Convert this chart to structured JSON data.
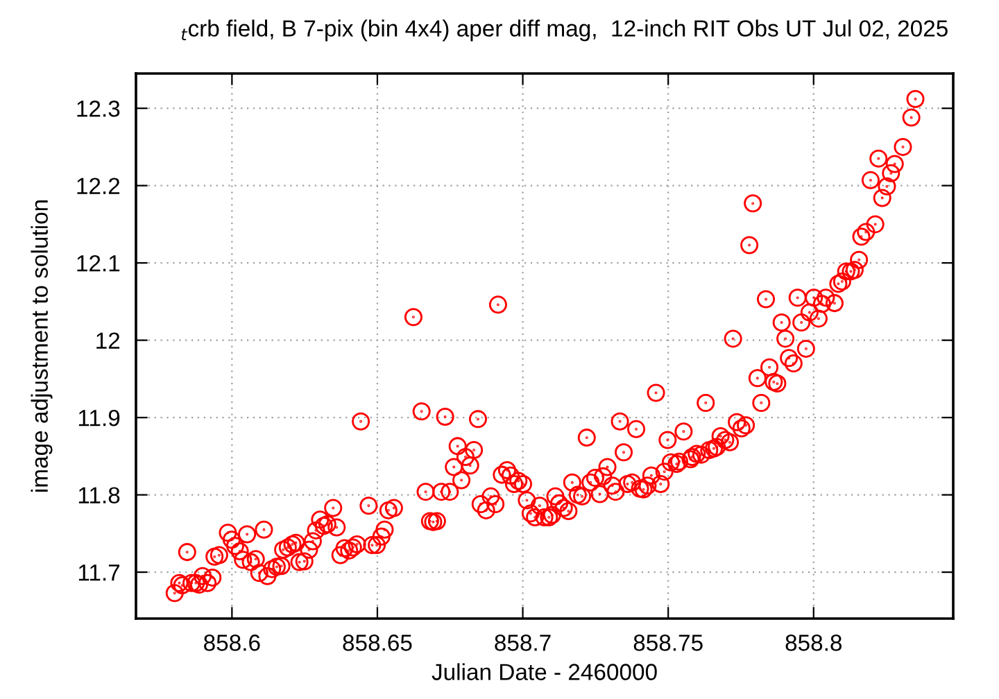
{
  "chart_data": {
    "type": "scatter",
    "title": "$_{t}$crb field, B 7-pix (bin 4x4) aper diff mag,  12-inch RIT Obs UT Jul 02, 2025",
    "xlabel": "Julian Date - 2460000",
    "ylabel": "image adjustment to solution",
    "xlim": [
      858.567,
      858.848
    ],
    "ylim": [
      11.64,
      12.345
    ],
    "xticks": [
      858.6,
      858.65,
      858.7,
      858.75,
      858.8
    ],
    "yticks": [
      11.7,
      11.8,
      11.9,
      12,
      12.1,
      12.2,
      12.3
    ],
    "grid": true,
    "marker": "circle",
    "legend": false,
    "series": [
      {
        "color": "#ff0000",
        "x": [
          858.5803,
          858.5819,
          858.5829,
          858.5846,
          858.5861,
          858.5876,
          858.5887,
          858.5899,
          858.5916,
          858.5933,
          858.594,
          858.5956,
          858.5986,
          858.5999,
          858.6011,
          858.6027,
          858.6038,
          858.6052,
          858.6065,
          858.6082,
          858.6094,
          858.611,
          858.6122,
          858.6138,
          858.6154,
          858.617,
          858.6176,
          858.6192,
          858.6208,
          858.622,
          858.6232,
          858.6249,
          858.6265,
          858.6278,
          858.6289,
          858.6303,
          858.6316,
          858.6328,
          858.6348,
          858.636,
          858.6373,
          858.6387,
          858.6403,
          858.6416,
          858.643,
          858.6443,
          858.647,
          858.6482,
          858.6498,
          858.6514,
          858.6525,
          858.6538,
          858.6557,
          858.6624,
          858.6652,
          858.6666,
          858.6681,
          858.6692,
          858.6705,
          858.672,
          858.6733,
          858.6749,
          858.6763,
          858.6776,
          858.6789,
          858.6803,
          858.6819,
          858.6832,
          858.6846,
          858.6855,
          858.6874,
          858.689,
          858.6906,
          858.6915,
          858.6928,
          858.6946,
          858.6958,
          858.697,
          858.6985,
          858.7001,
          858.7014,
          858.7027,
          858.7042,
          858.7058,
          858.7074,
          858.709,
          858.7101,
          858.7112,
          858.7125,
          858.7141,
          858.7157,
          858.717,
          858.7189,
          858.7204,
          858.722,
          858.7233,
          858.7249,
          858.7265,
          858.7276,
          858.7291,
          858.7308,
          858.7319,
          858.7334,
          858.7347,
          858.736,
          858.7376,
          858.739,
          858.7403,
          858.7415,
          858.7429,
          858.7442,
          858.7458,
          858.7474,
          858.7487,
          858.7498,
          858.7509,
          858.7529,
          858.7553,
          858.7577,
          858.7538,
          858.7582,
          858.7598,
          858.7614,
          858.7629,
          858.7641,
          858.7657,
          858.7667,
          858.768,
          858.7696,
          858.7712,
          858.7723,
          858.7736,
          858.7752,
          858.7767,
          858.7779,
          858.7791,
          858.7807,
          858.782,
          858.7836,
          858.7848,
          858.7863,
          858.7875,
          858.789,
          858.7903,
          858.7915,
          858.7931,
          858.7945,
          858.7958,
          858.7974,
          858.7986,
          858.8001,
          858.8017,
          858.8029,
          858.8042,
          858.8072,
          858.8085,
          858.8098,
          858.8112,
          858.8128,
          858.8141,
          858.8156,
          858.8164,
          858.818,
          858.8196,
          858.8212,
          858.8223,
          858.8236,
          858.8252,
          858.8266,
          858.8279,
          858.8307,
          858.8336,
          858.835
        ],
        "values": [
          11.673,
          11.686,
          11.683,
          11.726,
          11.686,
          11.686,
          11.684,
          11.695,
          11.686,
          11.693,
          11.72,
          11.722,
          11.751,
          11.742,
          11.734,
          11.727,
          11.716,
          11.749,
          11.713,
          11.717,
          11.699,
          11.755,
          11.695,
          11.704,
          11.707,
          11.708,
          11.729,
          11.732,
          11.736,
          11.738,
          11.713,
          11.714,
          11.729,
          11.74,
          11.754,
          11.768,
          11.76,
          11.762,
          11.783,
          11.758,
          11.722,
          11.731,
          11.728,
          11.732,
          11.736,
          11.895,
          11.786,
          11.735,
          11.735,
          11.746,
          11.755,
          11.78,
          11.783,
          12.03,
          11.908,
          11.804,
          11.766,
          11.765,
          11.766,
          11.804,
          11.901,
          11.804,
          11.836,
          11.863,
          11.819,
          11.849,
          11.838,
          11.858,
          11.898,
          11.788,
          11.78,
          11.798,
          11.788,
          12.046,
          11.826,
          11.832,
          11.825,
          11.814,
          11.818,
          11.814,
          11.793,
          11.776,
          11.771,
          11.786,
          11.771,
          11.771,
          11.774,
          11.798,
          11.789,
          11.783,
          11.779,
          11.816,
          11.8,
          11.798,
          11.874,
          11.816,
          11.822,
          11.801,
          11.824,
          11.836,
          11.812,
          11.804,
          11.895,
          11.855,
          11.814,
          11.816,
          11.885,
          11.808,
          11.807,
          11.812,
          11.825,
          11.932,
          11.814,
          11.83,
          11.871,
          11.842,
          11.84,
          11.882,
          11.846,
          11.843,
          11.849,
          11.853,
          11.852,
          11.919,
          11.858,
          11.86,
          11.862,
          11.876,
          11.871,
          11.868,
          12.002,
          11.894,
          11.886,
          11.89,
          12.123,
          12.177,
          11.951,
          11.919,
          12.053,
          11.965,
          11.946,
          11.944,
          12.023,
          12.002,
          11.977,
          11.97,
          12.055,
          12.023,
          11.989,
          12.036,
          12.055,
          12.028,
          12.047,
          12.055,
          12.048,
          12.073,
          12.076,
          12.089,
          12.089,
          12.091,
          12.104,
          12.134,
          12.14,
          12.207,
          12.15,
          12.235,
          12.184,
          12.199,
          12.216,
          12.228,
          12.25,
          12.288,
          12.312
        ]
      }
    ]
  }
}
